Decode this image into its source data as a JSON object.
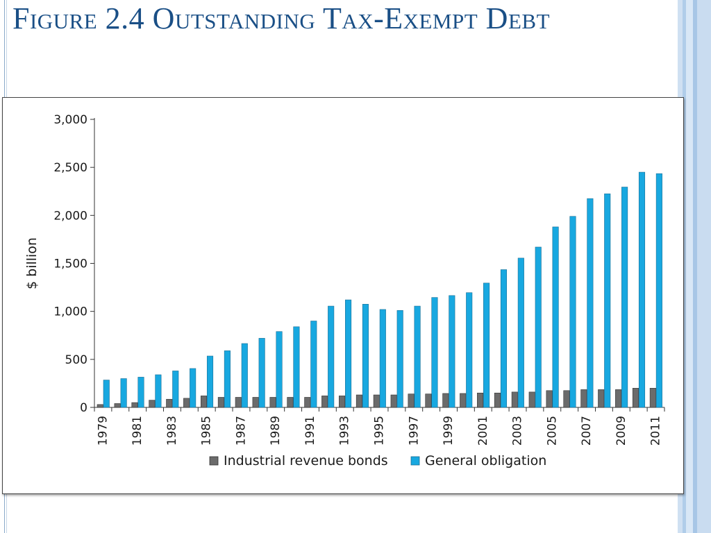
{
  "slide": {
    "title": "Figure 2.4 Outstanding Tax-Exempt Debt"
  },
  "colors": {
    "title": "#1a4f86",
    "industrial": "#6b6b6b",
    "general": "#18a8e0"
  },
  "chart_data": {
    "type": "bar",
    "title": "",
    "xlabel": "",
    "ylabel": "$ billion",
    "ylim": [
      0,
      3000
    ],
    "yticks": [
      0,
      500,
      1000,
      1500,
      2000,
      2500,
      3000
    ],
    "ytick_labels": [
      "0",
      "500",
      "1,000",
      "1,500",
      "2,000",
      "2,500",
      "3,000"
    ],
    "categories": [
      "1979",
      "1980",
      "1981",
      "1982",
      "1983",
      "1984",
      "1985",
      "1986",
      "1987",
      "1988",
      "1989",
      "1990",
      "1991",
      "1992",
      "1993",
      "1994",
      "1995",
      "1996",
      "1997",
      "1998",
      "1999",
      "2000",
      "2001",
      "2002",
      "2003",
      "2004",
      "2005",
      "2006",
      "2007",
      "2008",
      "2009",
      "2010",
      "2011"
    ],
    "xtick_labels": [
      "1979",
      "1981",
      "1983",
      "1985",
      "1987",
      "1989",
      "1991",
      "1993",
      "1995",
      "1997",
      "1999",
      "2001",
      "2003",
      "2005",
      "2007",
      "2009",
      "2011"
    ],
    "legend_position": "bottom",
    "series": [
      {
        "name": "Industrial revenue bonds",
        "values": [
          30,
          40,
          50,
          75,
          85,
          95,
          120,
          105,
          105,
          105,
          105,
          105,
          105,
          120,
          120,
          130,
          130,
          130,
          140,
          140,
          145,
          145,
          150,
          150,
          160,
          160,
          175,
          175,
          185,
          185,
          185,
          200,
          200
        ]
      },
      {
        "name": "General obligation",
        "values": [
          285,
          300,
          315,
          340,
          380,
          405,
          535,
          590,
          665,
          720,
          790,
          840,
          900,
          1055,
          1120,
          1075,
          1020,
          1010,
          1055,
          1145,
          1165,
          1195,
          1295,
          1435,
          1555,
          1670,
          1880,
          1990,
          2175,
          2225,
          2295,
          2450,
          2435
        ]
      }
    ]
  }
}
